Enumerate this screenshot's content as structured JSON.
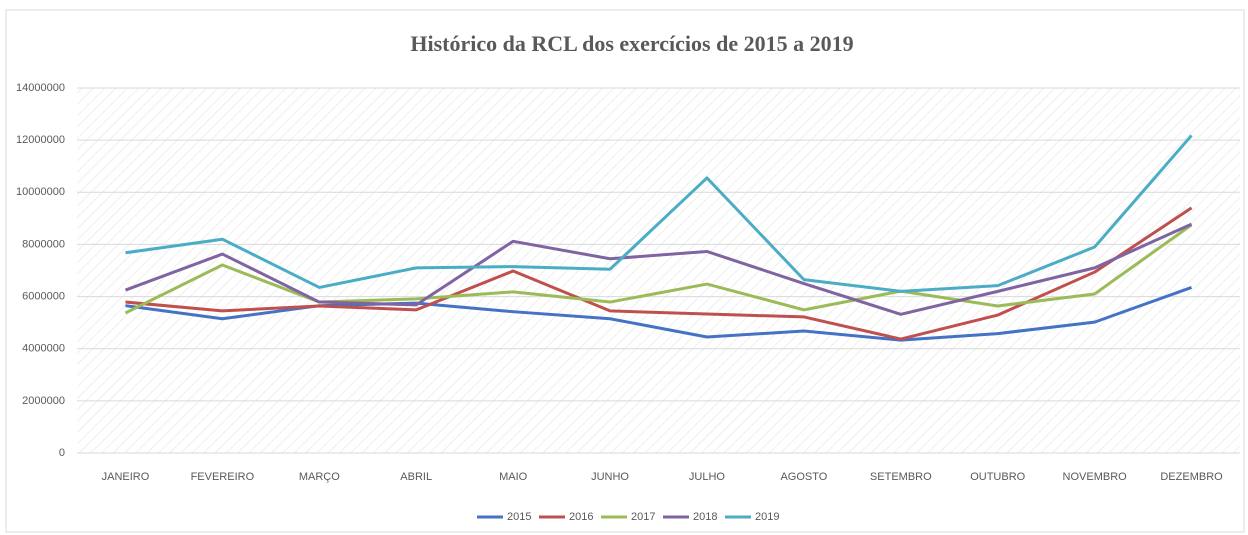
{
  "chart_data": {
    "type": "line",
    "title": "Histórico da RCL dos exercícios de 2015 a 2019",
    "categories": [
      "JANEIRO",
      "FEVEREIRO",
      "MARÇO",
      "ABRIL",
      "MAIO",
      "JUNHO",
      "JULHO",
      "AGOSTO",
      "SETEMBRO",
      "OUTUBRO",
      "NOVEMBRO",
      "DEZEMBRO"
    ],
    "series": [
      {
        "name": "2015",
        "color": "#4472c4",
        "values": [
          5650000,
          5150000,
          5650000,
          5750000,
          5420000,
          5150000,
          4450000,
          4680000,
          4330000,
          4580000,
          5020000,
          6350000
        ]
      },
      {
        "name": "2016",
        "color": "#c0504d",
        "values": [
          5790000,
          5450000,
          5640000,
          5490000,
          6980000,
          5450000,
          5330000,
          5220000,
          4370000,
          5290000,
          6940000,
          9400000
        ]
      },
      {
        "name": "2017",
        "color": "#9bbb59",
        "values": [
          5370000,
          7210000,
          5790000,
          5910000,
          6180000,
          5790000,
          6480000,
          5490000,
          6210000,
          5640000,
          6100000,
          8750000
        ]
      },
      {
        "name": "2018",
        "color": "#8064a2",
        "values": [
          6250000,
          7630000,
          5790000,
          5680000,
          8120000,
          7450000,
          7730000,
          6500000,
          5320000,
          6200000,
          7100000,
          8780000
        ]
      },
      {
        "name": "2019",
        "color": "#4bacc6",
        "values": [
          7680000,
          8200000,
          6350000,
          7100000,
          7150000,
          7050000,
          10550000,
          6650000,
          6200000,
          6420000,
          7900000,
          12180000
        ]
      }
    ],
    "ylim": [
      0,
      14000000
    ],
    "yticks": [
      0,
      2000000,
      4000000,
      6000000,
      8000000,
      10000000,
      12000000,
      14000000
    ],
    "grid": true,
    "legend": "bottom"
  }
}
